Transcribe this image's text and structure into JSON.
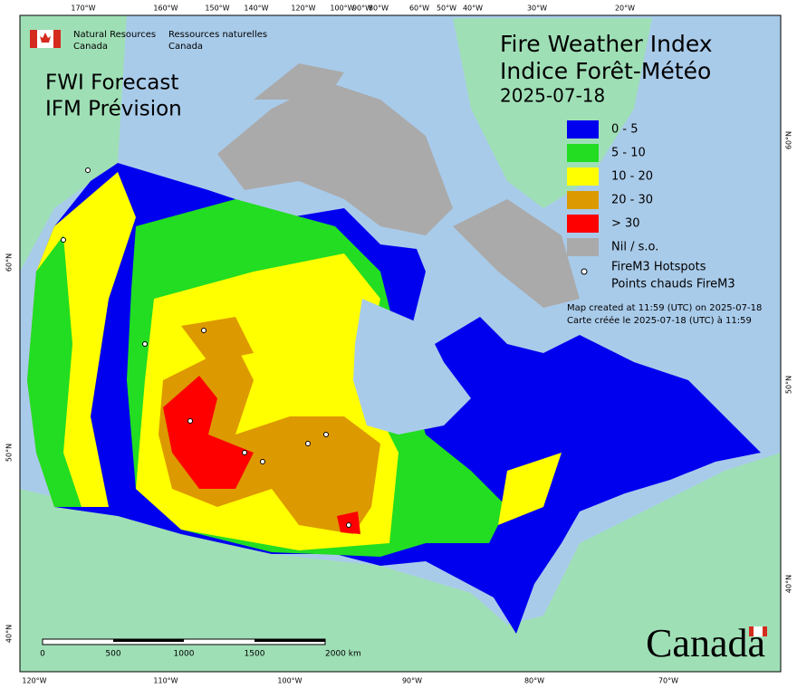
{
  "header": {
    "agency_en": [
      "Natural Resources",
      "Canada"
    ],
    "agency_fr": [
      "Ressources naturelles",
      "Canada"
    ],
    "product": [
      "FWI Forecast",
      "IFM Prévision"
    ],
    "title": [
      "Fire Weather Index",
      "Indice Forêt-Météo"
    ],
    "date": "2025-07-18"
  },
  "legend": {
    "items": [
      {
        "label": "0 - 5",
        "color": "#0000ee"
      },
      {
        "label": "5 - 10",
        "color": "#22dd22"
      },
      {
        "label": "10 - 20",
        "color": "#ffff00"
      },
      {
        "label": "20 - 30",
        "color": "#dd9900"
      },
      {
        "label": "> 30",
        "color": "#ff0000"
      },
      {
        "label": "Nil / s.o.",
        "color": "#aaaaaa"
      }
    ],
    "hotspots": [
      "FireM3 Hotspots",
      "Points chauds FireM3"
    ],
    "created": [
      "Map created at 11:59 (UTC) on 2025-07-18",
      "Carte créée le 2025-07-18 (UTC) à 11:59"
    ]
  },
  "graticule": {
    "top": [
      "170°W",
      "160°W",
      "150°W",
      "140°W",
      "120°W",
      "100°W",
      "90°W",
      "80°W",
      "60°W",
      "50°W",
      "40°W",
      "30°W",
      "20°W"
    ],
    "bottom": [
      "120°W",
      "110°W",
      "100°W",
      "90°W",
      "80°W",
      "70°W"
    ],
    "left": [
      "60°N",
      "50°N",
      "40°N"
    ],
    "right": [
      "60°N",
      "50°N",
      "40°N"
    ]
  },
  "scale": [
    "0",
    "500",
    "1000",
    "1500",
    "2000 km"
  ],
  "wordmark": "Canada"
}
